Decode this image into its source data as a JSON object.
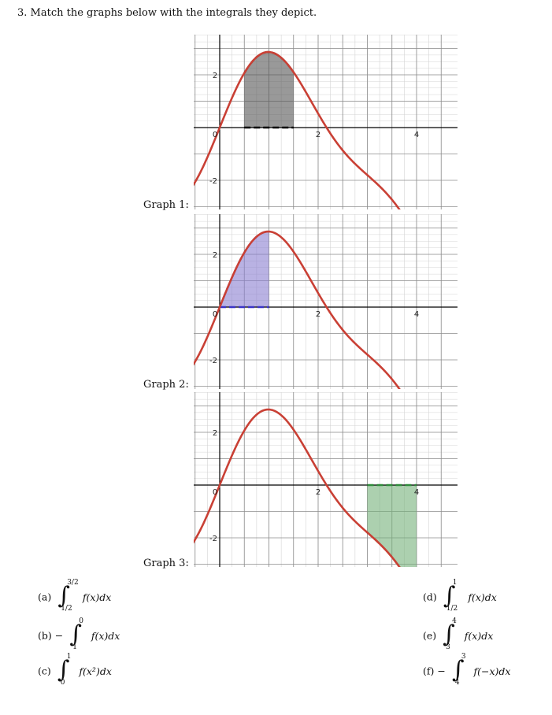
{
  "question": "3. Match the graphs below with the integrals they depict.",
  "graphs": [
    {
      "label": "Graph 1:",
      "tick_x": [
        "2",
        "4"
      ],
      "tick_y": [
        "2",
        "-2"
      ],
      "origin": "0",
      "shade": {
        "from": 0.5,
        "to": 1.5,
        "fill": "#555555",
        "line": "#000000"
      }
    },
    {
      "label": "Graph 2:",
      "tick_x": [
        "2",
        "4"
      ],
      "tick_y": [
        "2",
        "-2"
      ],
      "origin": "0",
      "shade": {
        "from": 0,
        "to": 1,
        "fill": "#8a7fd0",
        "line": "#3b35c8"
      }
    },
    {
      "label": "Graph 3:",
      "tick_x": [
        "2",
        "4"
      ],
      "tick_y": [
        "2",
        "-2"
      ],
      "origin": "0",
      "shade": {
        "from": 3,
        "to": 4,
        "fill": "#74b07a",
        "line": "#2e8b3a"
      }
    }
  ],
  "curve_color": "#c94035",
  "options": {
    "a": {
      "tag": "(a)",
      "pre": "",
      "upper": "3/2",
      "lower": "1/2",
      "body": "f(x)dx"
    },
    "b": {
      "tag": "(b)",
      "pre": "−",
      "upper": "0",
      "lower": "1",
      "body": "f(x)dx"
    },
    "c": {
      "tag": "(c)",
      "pre": "",
      "upper": "1",
      "lower": "0",
      "body": "f(x²)dx"
    },
    "d": {
      "tag": "(d)",
      "pre": "",
      "upper": "1",
      "lower": "1/2",
      "body": "f(x)dx"
    },
    "e": {
      "tag": "(e)",
      "pre": "",
      "upper": "4",
      "lower": "3",
      "body": "f(x)dx"
    },
    "f": {
      "tag": "(f)",
      "pre": "−",
      "upper": "3",
      "lower": "4",
      "body": "f(−x)dx"
    }
  }
}
